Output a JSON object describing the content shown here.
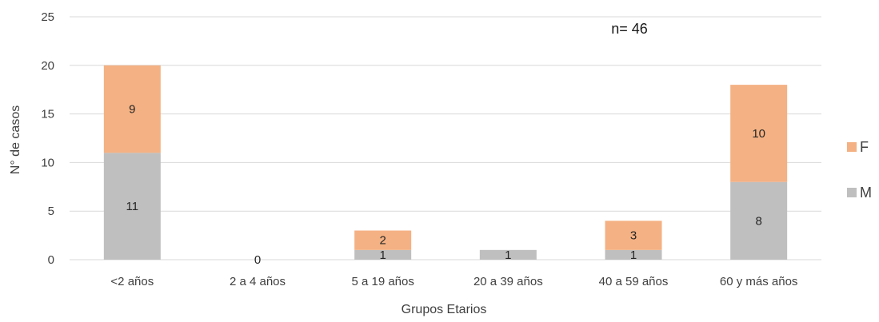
{
  "chart_data": {
    "type": "bar",
    "stacked": true,
    "categories": [
      "<2 años",
      "2 a 4 años",
      "5 a 19 años",
      "20 a 39 años",
      "40 a 59 años",
      "60 y más años"
    ],
    "series": [
      {
        "name": "M",
        "color": "#bfbfbf",
        "values": [
          11,
          0,
          1,
          1,
          1,
          8
        ]
      },
      {
        "name": "F",
        "color": "#f4b183",
        "values": [
          9,
          0,
          2,
          0,
          3,
          10
        ]
      }
    ],
    "data_labels": [
      {
        "category": "<2 años",
        "series": "M",
        "text": "11"
      },
      {
        "category": "<2 años",
        "series": "F",
        "text": "9"
      },
      {
        "category": "2 a 4 años",
        "series": "M",
        "text": "0"
      },
      {
        "category": "5 a 19 años",
        "series": "M",
        "text": "1"
      },
      {
        "category": "5 a 19 años",
        "series": "F",
        "text": "2"
      },
      {
        "category": "20 a 39 años",
        "series": "M",
        "text": "1"
      },
      {
        "category": "40 a 59 años",
        "series": "M",
        "text": "1"
      },
      {
        "category": "40 a 59 años",
        "series": "F",
        "text": "3"
      },
      {
        "category": "60 y más años",
        "series": "M",
        "text": "8"
      },
      {
        "category": "60 y más años",
        "series": "F",
        "text": "10"
      }
    ],
    "title": "",
    "annotation": "n= 46",
    "xlabel": "Grupos Etarios",
    "ylabel": "N° de casos",
    "ylim": [
      0,
      25
    ],
    "yticks": [
      "0",
      "5",
      "10",
      "15",
      "20",
      "25"
    ],
    "grid": true,
    "legend": {
      "position": "right",
      "entries": [
        "F",
        "M"
      ]
    },
    "gridline_color": "#d9d9d9"
  }
}
